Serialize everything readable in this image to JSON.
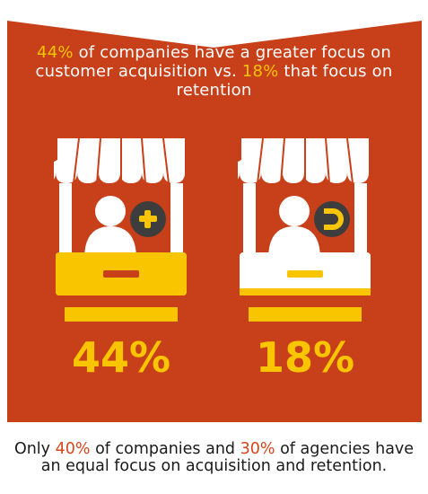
{
  "headline": {
    "pct_a": "44%",
    "text_a": " of companies have a greater focus on customer acquisition vs. ",
    "pct_b": "18%",
    "text_b": " that focus on retention"
  },
  "stalls": [
    {
      "value": "44%",
      "fill_fraction": 1.0,
      "badge_icon": "plus-icon"
    },
    {
      "value": "18%",
      "fill_fraction": 0.18,
      "badge_icon": "magnet-icon"
    }
  ],
  "footer": {
    "text_a": "Only ",
    "pct_a": "40%",
    "text_b": " of companies and ",
    "pct_b": "30%",
    "text_c": " of agencies have an equal focus on acquisition and retention."
  },
  "colors": {
    "banner": "#c8401a",
    "accent": "#f9c400",
    "dark": "#3d3d3d",
    "footer_highlight": "#d6451d"
  }
}
